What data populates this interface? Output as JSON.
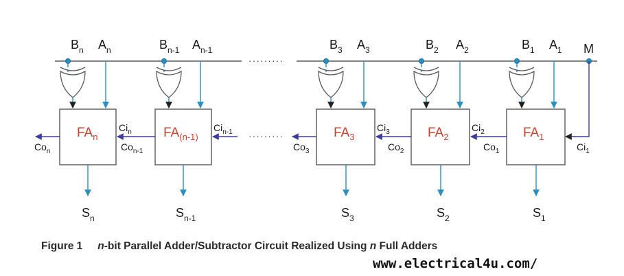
{
  "stages": [
    {
      "id": "n",
      "b_main": "B",
      "b_sub": "n",
      "a_main": "A",
      "a_sub": "n",
      "fa_main": "FA",
      "fa_sub": "n",
      "s_main": "S",
      "s_sub": "n",
      "co_main": "Co",
      "co_sub": "n",
      "ci_main": "Ci",
      "ci_sub": "n"
    },
    {
      "id": "n-1",
      "b_main": "B",
      "b_sub": "n-1",
      "a_main": "A",
      "a_sub": "n-1",
      "fa_main": "FA",
      "fa_sub": "(n-1)",
      "s_main": "S",
      "s_sub": "n-1",
      "co_main": "Co",
      "co_sub": "n-1",
      "ci_main": "Ci",
      "ci_sub": "n-1"
    },
    {
      "id": "3",
      "b_main": "B",
      "b_sub": "3",
      "a_main": "A",
      "a_sub": "3",
      "fa_main": "FA",
      "fa_sub": "3",
      "s_main": "S",
      "s_sub": "3",
      "co_main": "Co",
      "co_sub": "3",
      "ci_main": "Ci",
      "ci_sub": "3"
    },
    {
      "id": "2",
      "b_main": "B",
      "b_sub": "2",
      "a_main": "A",
      "a_sub": "2",
      "fa_main": "FA",
      "fa_sub": "2",
      "s_main": "S",
      "s_sub": "2",
      "co_main": "Co",
      "co_sub": "2",
      "ci_main": "Ci",
      "ci_sub": "2"
    },
    {
      "id": "1",
      "b_main": "B",
      "b_sub": "1",
      "a_main": "A",
      "a_sub": "1",
      "fa_main": "FA",
      "fa_sub": "1",
      "s_main": "S",
      "s_sub": "1",
      "co_main": "Co",
      "co_sub": "1",
      "ci_main": "Ci",
      "ci_sub": "1"
    }
  ],
  "mode_label": "M",
  "ellipsis": "·········",
  "caption": {
    "figure": "Figure 1",
    "n_italic": "n",
    "text_a": "-bit Parallel Adder/Subtractor Circuit Realized Using ",
    "n_italic_2": "n",
    "text_b": " Full Adders"
  },
  "watermark": "www.electrical4u.com/",
  "colors": {
    "fa_text": "#d2402c",
    "signal_line": "#2a8fc0",
    "carry_line": "#3b3ba0",
    "bus_line": "#5a5a5a"
  }
}
